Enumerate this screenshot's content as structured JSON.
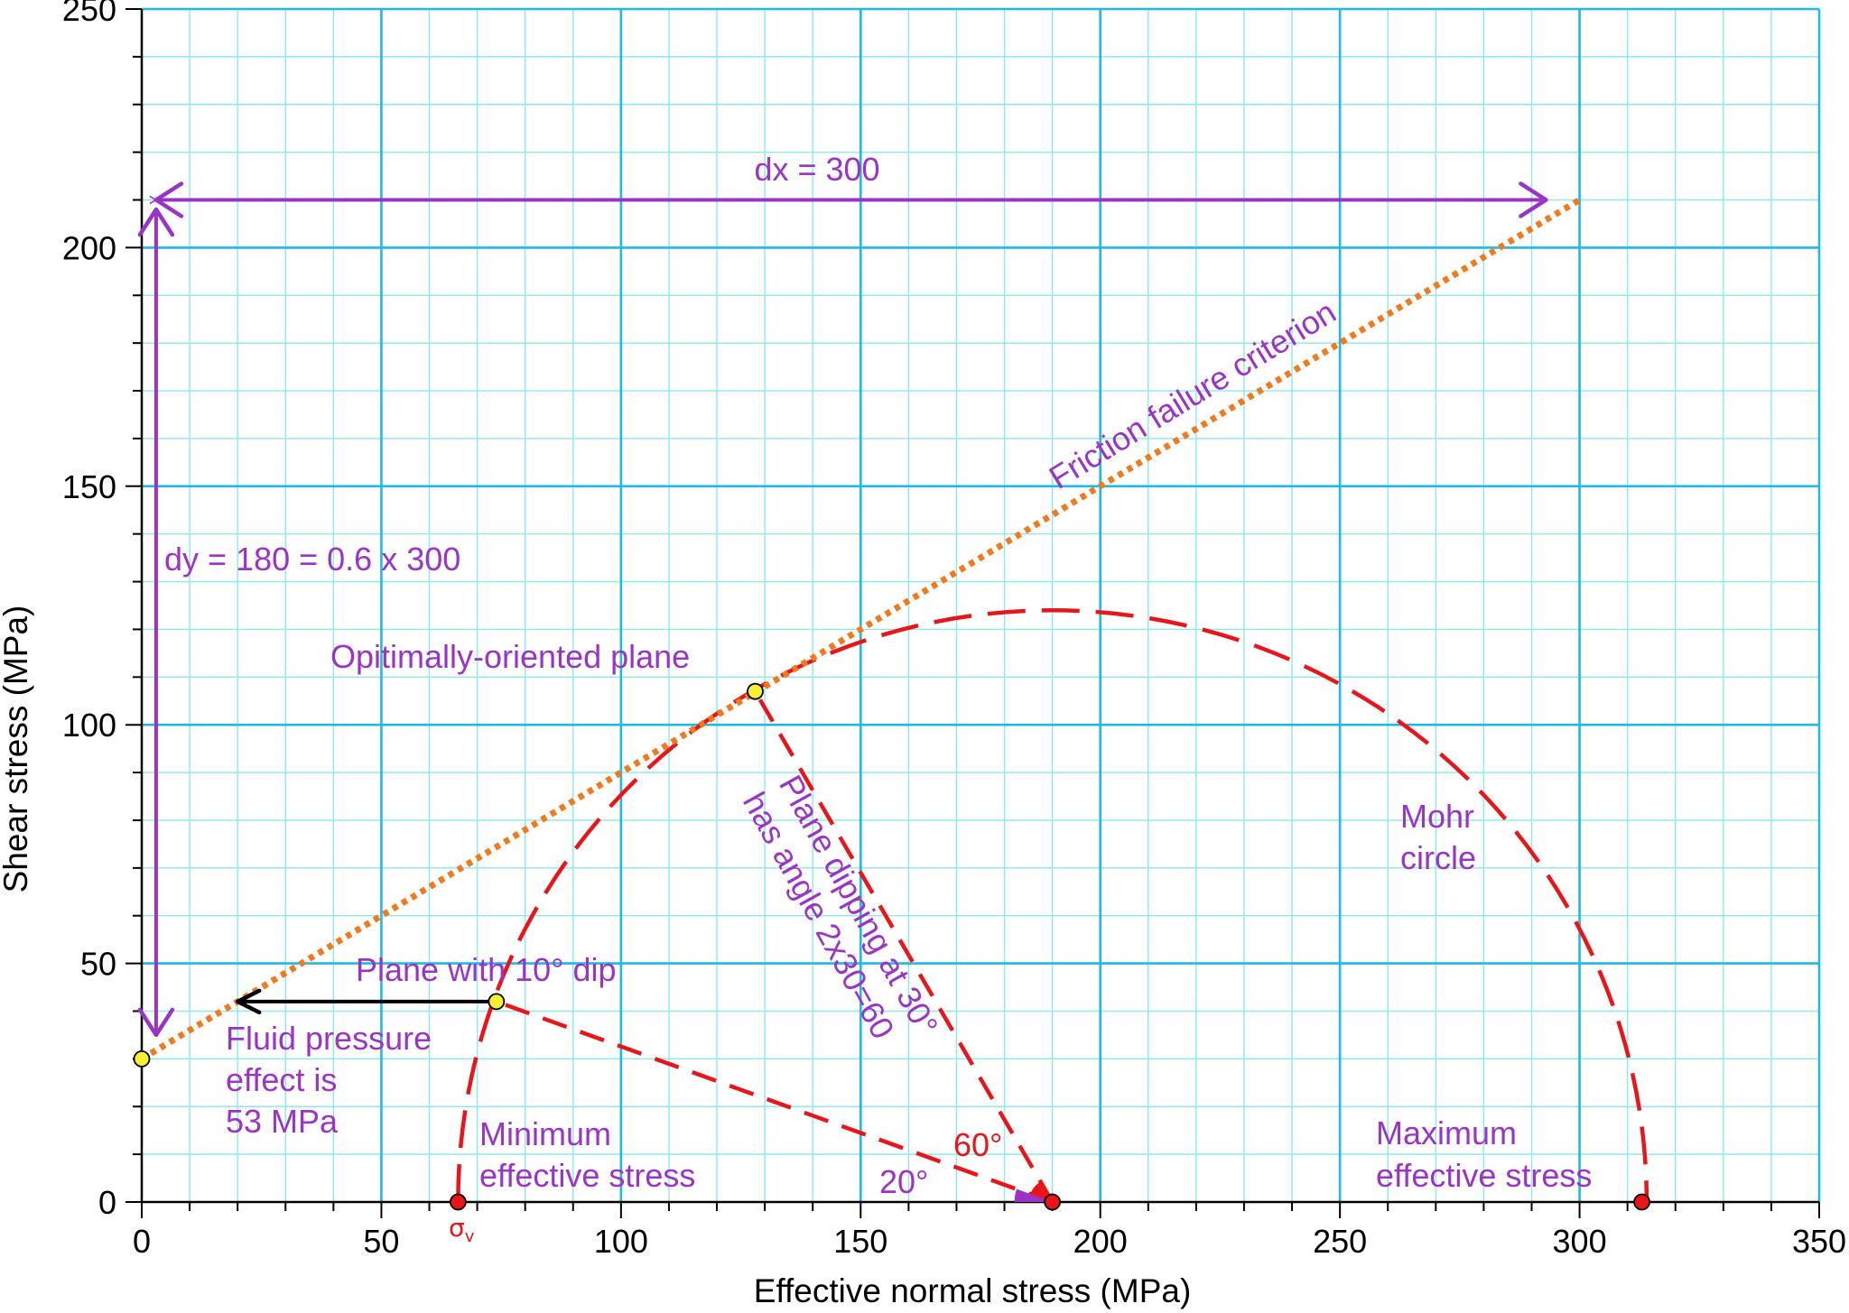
{
  "chart_data": {
    "type": "line",
    "xlabel": "Effective normal stress (MPa)",
    "ylabel": "Shear stress (MPa)",
    "xlim": [
      0,
      350
    ],
    "ylim": [
      0,
      250
    ],
    "x_ticks": [
      0,
      50,
      100,
      150,
      200,
      250,
      300,
      350
    ],
    "y_ticks": [
      0,
      50,
      100,
      150,
      200,
      250
    ],
    "x_tick_labels": [
      "0",
      "50",
      "100",
      "150",
      "200",
      "250",
      "300",
      "350"
    ],
    "y_tick_labels": [
      "0",
      "50",
      "100",
      "150",
      "200",
      "250"
    ],
    "grid": true,
    "grid_major_color": "#1fb9e6",
    "grid_minor_color": "#8ee8ee",
    "friction_line": {
      "name": "Friction failure criterion",
      "color": "#f07a1e",
      "style": "dotted",
      "x": [
        0,
        300
      ],
      "y": [
        30,
        210
      ]
    },
    "mohr_circle": {
      "name": "Mohr circle",
      "color": "#e8161a",
      "style": "dashed",
      "center": 190,
      "radius": 124
    },
    "points": [
      {
        "x": 0,
        "y": 30,
        "color": "#f5f032"
      },
      {
        "x": 128,
        "y": 107,
        "color": "#f5f032"
      },
      {
        "x": 74,
        "y": 42,
        "color": "#f5f032"
      },
      {
        "x": 66,
        "y": 0,
        "color": "#e8161a"
      },
      {
        "x": 190,
        "y": 0,
        "color": "#e8161a"
      },
      {
        "x": 313,
        "y": 0,
        "color": "#e8161a"
      }
    ],
    "radius_lines": [
      {
        "from": [
          190,
          0
        ],
        "to": [
          128,
          107
        ]
      },
      {
        "from": [
          190,
          0
        ],
        "to": [
          74,
          42
        ]
      }
    ],
    "dx_arrow": {
      "x": [
        3,
        293
      ],
      "y": 210,
      "label": "dx = 300"
    },
    "dy_arrow": {
      "x": 3,
      "y": [
        35,
        208
      ],
      "label": "dy = 180 = 0.6 x 300"
    },
    "fluid_arrow": {
      "x": [
        74,
        20
      ],
      "y": 42
    },
    "angle_labels": {
      "a60": "60°",
      "a20": "20°"
    },
    "annotations": {
      "friction": "Friction failure criterion",
      "optimal": "Opitimally-oriented plane",
      "plane10": "Plane with 10° dip",
      "fluid_1": "Fluid pressure",
      "fluid_2": "effect is",
      "fluid_3": "53 MPa",
      "dipping_1": "Plane dipping at 30°",
      "dipping_2": "has angle 2x30=60",
      "mohr_1": "Mohr",
      "mohr_2": "circle",
      "min_1": "Minimum",
      "min_2": "effective stress",
      "max_1": "Maximum",
      "max_2": "effective stress",
      "sigma_v": "σ",
      "sigma_v_sub": "v"
    },
    "colors": {
      "annotation": "#9a34c6",
      "accent_red": "#e8161a",
      "arrow_black": "#000000"
    }
  }
}
